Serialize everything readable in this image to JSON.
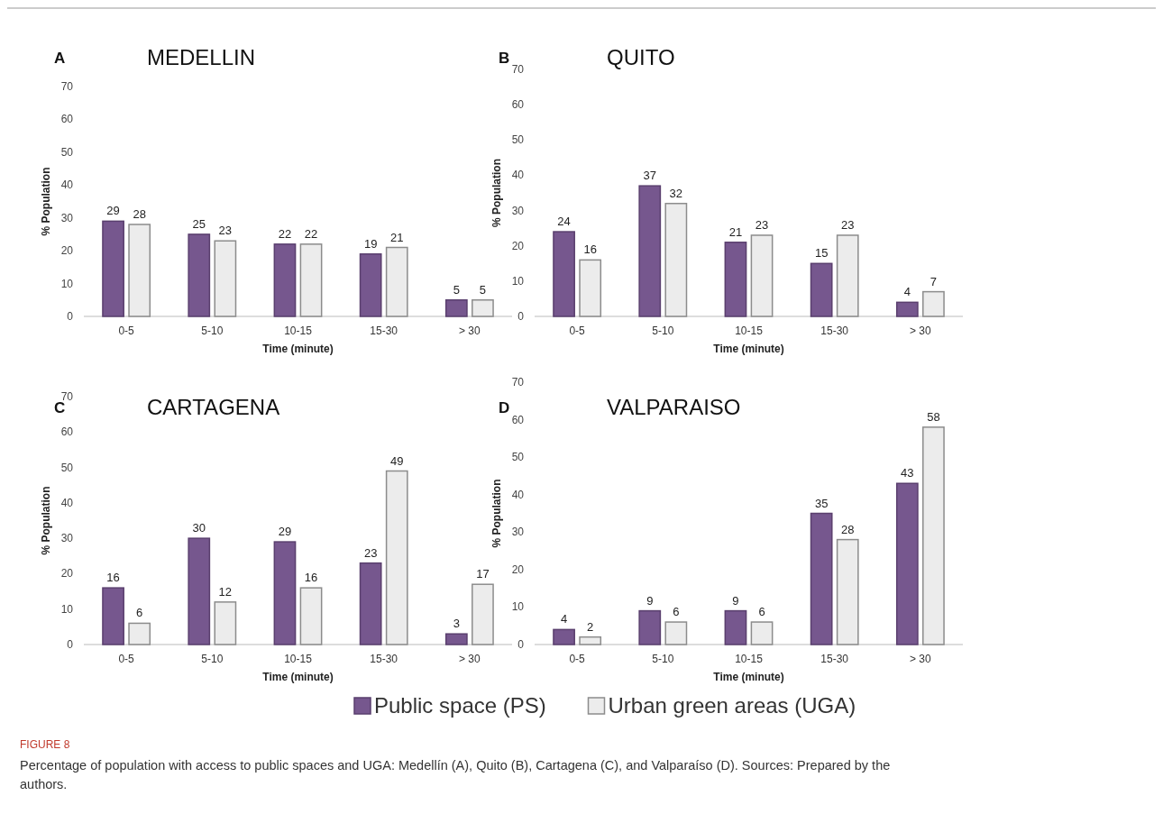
{
  "chart_data": [
    {
      "type": "bar",
      "title": "MEDELLIN",
      "annotations": [
        "A"
      ],
      "xlabel": "Time (minute)",
      "ylabel": "% Population",
      "categories": [
        "0-5",
        "5-10",
        "10-15",
        "15-30",
        "> 30"
      ],
      "series": [
        {
          "color": "#76578e",
          "values": [
            29,
            25,
            22,
            19,
            5
          ]
        },
        {
          "color": "#ececec",
          "values": [
            28,
            23,
            22,
            21,
            5
          ]
        }
      ],
      "ylim": [
        0,
        70
      ],
      "yticks": [
        0,
        10,
        20,
        30,
        40,
        50,
        60,
        70
      ],
      "data_labels": true,
      "grid": false
    },
    {
      "type": "bar",
      "title": "QUITO",
      "annotations": [
        "B"
      ],
      "xlabel": "Time (minute)",
      "ylabel": "% Population",
      "categories": [
        "0-5",
        "5-10",
        "10-15",
        "15-30",
        "> 30"
      ],
      "series": [
        {
          "color": "#76578e",
          "values": [
            24,
            37,
            21,
            15,
            4
          ]
        },
        {
          "color": "#ececec",
          "values": [
            16,
            32,
            23,
            23,
            7
          ]
        }
      ],
      "ylim": [
        0,
        70
      ],
      "yticks": [
        0,
        10,
        20,
        30,
        40,
        50,
        60,
        70
      ],
      "data_labels": true,
      "grid": false
    },
    {
      "type": "bar",
      "title": "CARTAGENA",
      "annotations": [
        "C"
      ],
      "xlabel": "Time (minute)",
      "ylabel": "% Population",
      "categories": [
        "0-5",
        "5-10",
        "10-15",
        "15-30",
        "> 30"
      ],
      "series": [
        {
          "color": "#76578e",
          "values": [
            16,
            30,
            29,
            23,
            3
          ]
        },
        {
          "color": "#ececec",
          "values": [
            6,
            12,
            16,
            49,
            17
          ]
        }
      ],
      "ylim": [
        0,
        70
      ],
      "yticks": [
        0,
        10,
        20,
        30,
        40,
        50,
        60,
        70
      ],
      "data_labels": true,
      "grid": false
    },
    {
      "type": "bar",
      "title": "VALPARAISO",
      "annotations": [
        "D",
        "FIGURE 8",
        "Percentage of population with access to public spaces and UGA: Medellín (A), Quito (B), Cartagena (C), and Valparaíso (D). Sources: Prepared by the authors."
      ],
      "xlabel": "Time (minute)",
      "ylabel": "% Population",
      "categories": [
        "0-5",
        "5-10",
        "10-15",
        "15-30",
        "> 30"
      ],
      "series": [
        {
          "name": "Public space (PS)",
          "color": "#76578e",
          "values": [
            4,
            9,
            9,
            35,
            43
          ]
        },
        {
          "name": "Urban green areas (UGA)",
          "color": "#ececec",
          "values": [
            2,
            6,
            6,
            28,
            58
          ]
        }
      ],
      "ylim": [
        0,
        70
      ],
      "yticks": [
        0,
        10,
        20,
        30,
        40,
        50,
        60,
        70
      ],
      "data_labels": true,
      "grid": false,
      "legend": "bottom"
    }
  ]
}
